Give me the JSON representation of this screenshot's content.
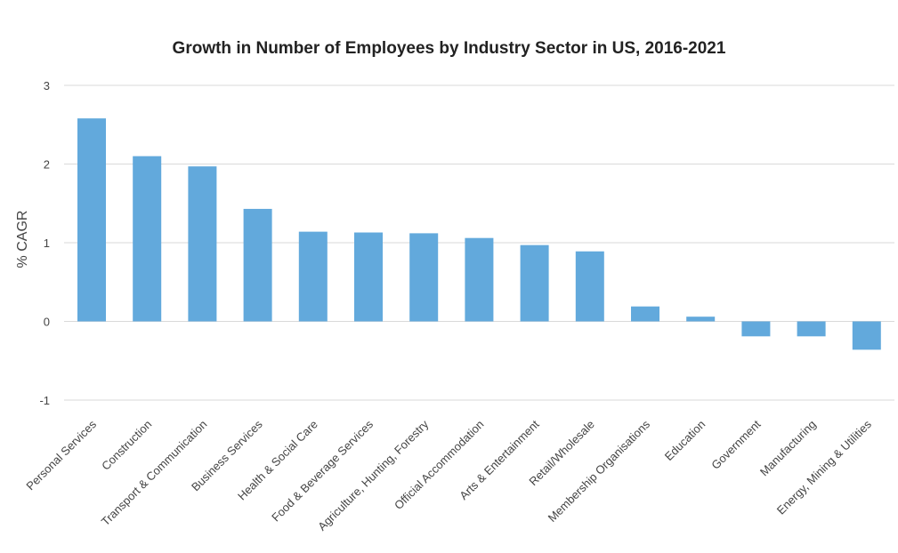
{
  "chart_data": {
    "type": "bar",
    "title": "Growth in Number of Employees by Industry Sector in US, 2016-2021",
    "ylabel": "% CAGR",
    "xlabel": "",
    "ylim": [
      -1,
      3
    ],
    "yticks": [
      -1,
      0,
      1,
      2,
      3
    ],
    "grid": true,
    "bar_color": "#62a9dc",
    "categories": [
      "Personal Services",
      "Construction",
      "Transport & Communication",
      "Business Services",
      "Health & Social Care",
      "Food & Beverage Services",
      "Agriculture, Hunting, Forestry",
      "Official Accommodation",
      "Arts & Entertainment",
      "Retail/Wholesale",
      "Membership Organisations",
      "Education",
      "Government",
      "Manufacturing",
      "Energy, Mining & Utilities"
    ],
    "values": [
      2.58,
      2.1,
      1.97,
      1.43,
      1.14,
      1.13,
      1.12,
      1.06,
      0.97,
      0.89,
      0.19,
      0.06,
      -0.19,
      -0.19,
      -0.36
    ]
  }
}
